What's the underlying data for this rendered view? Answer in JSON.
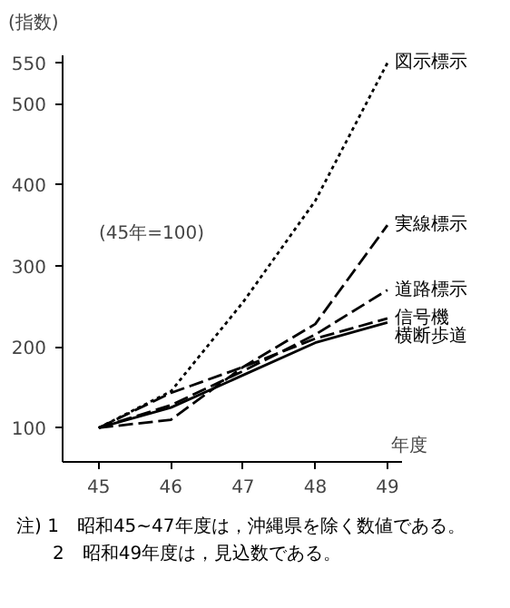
{
  "chart_data": {
    "type": "line",
    "x": [
      45,
      46,
      47,
      48,
      49
    ],
    "xlim": [
      44.5,
      49.2
    ],
    "xticks": [
      45,
      46,
      47,
      48,
      49
    ],
    "xlabel": "年度",
    "ylabel": "(指数)",
    "ylim": [
      58,
      560
    ],
    "yticks": [
      100,
      200,
      300,
      400,
      500,
      550
    ],
    "grid": false,
    "legend": false,
    "marker": "none",
    "series": [
      {
        "name": "図示標示",
        "color": "#000000",
        "line_style": "dotted",
        "values": [
          100,
          145,
          255,
          380,
          550
        ]
      },
      {
        "name": "実線標示",
        "color": "#000000",
        "line_style": "dashed",
        "values": [
          100,
          110,
          175,
          228,
          350
        ]
      },
      {
        "name": "道路標示",
        "color": "#000000",
        "line_style": "dashed",
        "values": [
          100,
          128,
          170,
          215,
          270
        ]
      },
      {
        "name": "信号機",
        "color": "#000000",
        "line_style": "dashed",
        "values": [
          100,
          143,
          175,
          210,
          235
        ]
      },
      {
        "name": "横断歩道",
        "color": "#000000",
        "line_style": "solid",
        "values": [
          100,
          125,
          165,
          205,
          230
        ]
      }
    ],
    "annotations": [
      "(45年=100)",
      "注) 1　昭和45~47年度は，沖縄県を除く数値である。",
      "　　2　昭和49年度は，見込数である。"
    ]
  }
}
